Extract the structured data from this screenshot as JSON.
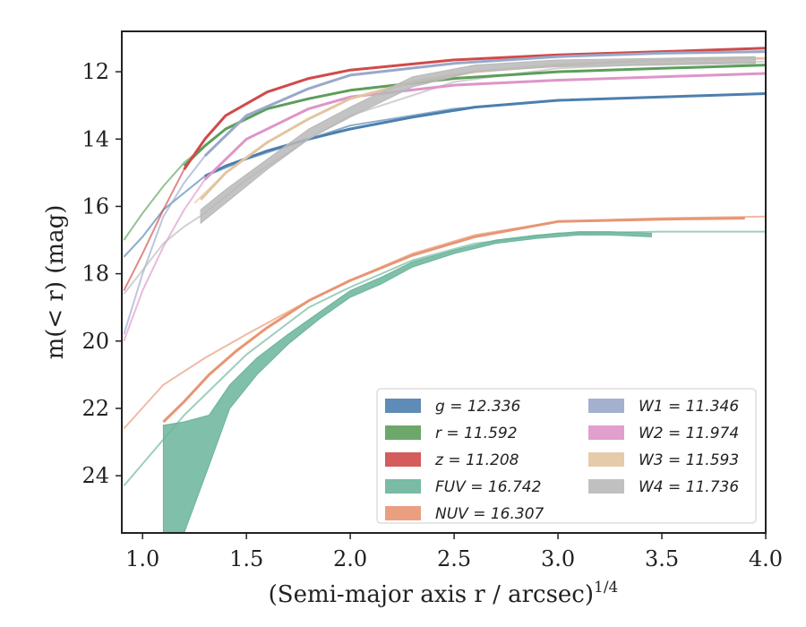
{
  "chart_data": {
    "type": "line",
    "xlabel": "(Semi-major axis r / arcsec)",
    "xlabel_exponent": "1/4",
    "ylabel": "m(< r) (mag)",
    "xlim": [
      0.9,
      4.0
    ],
    "ylim": [
      25.7,
      10.8
    ],
    "y_inverted": true,
    "x_ticks": [
      1.0,
      1.5,
      2.0,
      2.5,
      3.0,
      3.5,
      4.0
    ],
    "x_tick_labels": [
      "1.0",
      "1.5",
      "2.0",
      "2.5",
      "3.0",
      "3.5",
      "4.0"
    ],
    "y_ticks": [
      12,
      14,
      16,
      18,
      20,
      22,
      24
    ],
    "y_tick_labels": [
      "12",
      "14",
      "16",
      "18",
      "20",
      "22",
      "24"
    ],
    "grid": false,
    "legend_position": "lower-right",
    "series": [
      {
        "name": "g",
        "label_value": "12.336",
        "color": "#4c7fae",
        "fit_x": [
          0.91,
          1.0,
          1.1,
          1.2,
          1.3,
          1.5,
          1.8,
          2.0,
          2.5,
          3.0,
          3.5,
          4.0
        ],
        "fit_y": [
          17.5,
          16.9,
          16.1,
          15.6,
          15.1,
          14.6,
          14.0,
          13.6,
          13.1,
          12.85,
          12.75,
          12.65
        ],
        "data_x": [
          1.3,
          1.4,
          1.6,
          1.8,
          2.0,
          2.3,
          2.6,
          3.0,
          3.5,
          4.0
        ],
        "data_y": [
          15.1,
          14.8,
          14.35,
          14.0,
          13.7,
          13.35,
          13.05,
          12.85,
          12.75,
          12.65
        ]
      },
      {
        "name": "r",
        "label_value": "11.592",
        "color": "#5c9e5a",
        "fit_x": [
          0.91,
          1.0,
          1.1,
          1.2,
          1.3,
          1.4,
          1.6,
          1.8,
          2.0,
          2.5,
          3.0,
          3.5,
          4.0
        ],
        "fit_y": [
          17.0,
          16.2,
          15.4,
          14.7,
          14.2,
          13.7,
          13.1,
          12.8,
          12.55,
          12.2,
          12.0,
          11.9,
          11.8
        ],
        "data_x": [
          1.2,
          1.3,
          1.4,
          1.6,
          1.8,
          2.0,
          2.5,
          3.0,
          3.5,
          4.0
        ],
        "data_y": [
          14.8,
          14.2,
          13.7,
          13.1,
          12.8,
          12.55,
          12.2,
          12.0,
          11.9,
          11.8
        ]
      },
      {
        "name": "z",
        "label_value": "11.208",
        "color": "#d04a4a",
        "fit_x": [
          0.91,
          1.0,
          1.1,
          1.2,
          1.3,
          1.4,
          1.6,
          1.8,
          2.0,
          2.5,
          3.0,
          3.5,
          4.0
        ],
        "fit_y": [
          18.5,
          17.4,
          16.1,
          14.9,
          14.0,
          13.3,
          12.6,
          12.2,
          11.95,
          11.65,
          11.5,
          11.4,
          11.3
        ],
        "data_x": [
          1.2,
          1.3,
          1.4,
          1.6,
          1.8,
          2.0,
          2.5,
          3.0,
          3.5,
          4.0
        ],
        "data_y": [
          14.9,
          14.0,
          13.3,
          12.6,
          12.2,
          11.95,
          11.65,
          11.5,
          11.4,
          11.3
        ]
      },
      {
        "name": "FUV",
        "label_value": "16.742",
        "color": "#6ab49a",
        "fit_x": [
          0.91,
          1.2,
          1.5,
          1.8,
          2.0,
          2.3,
          2.6,
          3.0,
          3.5,
          4.0
        ],
        "fit_y": [
          24.3,
          22.2,
          20.4,
          19.0,
          18.4,
          17.6,
          17.1,
          16.8,
          16.75,
          16.75
        ],
        "band_x": [
          1.1,
          1.2,
          1.32,
          1.42,
          1.55,
          1.7,
          1.85,
          2.0,
          2.15,
          2.3,
          2.5,
          2.7,
          2.9,
          3.1,
          3.25,
          3.45
        ],
        "band_lo": [
          25.7,
          25.7,
          23.7,
          22.0,
          21.0,
          20.1,
          19.35,
          18.7,
          18.3,
          17.8,
          17.4,
          17.1,
          16.95,
          16.85,
          16.85,
          16.9
        ],
        "band_hi": [
          22.5,
          22.4,
          22.2,
          21.3,
          20.5,
          19.8,
          19.15,
          18.5,
          18.1,
          17.65,
          17.3,
          17.0,
          16.85,
          16.75,
          16.75,
          16.8
        ]
      },
      {
        "name": "NUV",
        "label_value": "16.307",
        "color": "#e89573",
        "fit_x": [
          0.91,
          1.1,
          1.3,
          1.5,
          1.8,
          2.0,
          2.3,
          2.6,
          3.0,
          3.5,
          4.0
        ],
        "fit_y": [
          22.6,
          21.3,
          20.5,
          19.8,
          18.8,
          18.2,
          17.4,
          16.85,
          16.45,
          16.35,
          16.3
        ],
        "data_x": [
          1.1,
          1.2,
          1.32,
          1.45,
          1.6,
          1.8,
          2.0,
          2.3,
          2.6,
          3.0,
          3.5,
          3.9
        ],
        "data_y": [
          22.4,
          21.8,
          21.0,
          20.3,
          19.6,
          18.8,
          18.2,
          17.45,
          16.9,
          16.45,
          16.38,
          16.35
        ]
      },
      {
        "name": "W1",
        "label_value": "11.346",
        "color": "#99a8c9",
        "fit_x": [
          0.91,
          1.0,
          1.1,
          1.2,
          1.3,
          1.5,
          1.8,
          2.0,
          2.5,
          3.0,
          3.5,
          4.0
        ],
        "fit_y": [
          19.8,
          18.0,
          16.3,
          15.3,
          14.5,
          13.3,
          12.5,
          12.1,
          11.75,
          11.55,
          11.45,
          11.4
        ],
        "data_x": [
          1.3,
          1.5,
          1.8,
          2.0,
          2.5,
          3.0,
          3.5,
          4.0
        ],
        "data_y": [
          14.5,
          13.3,
          12.5,
          12.1,
          11.75,
          11.55,
          11.45,
          11.4
        ]
      },
      {
        "name": "W2",
        "label_value": "11.974",
        "color": "#de95c8",
        "fit_x": [
          0.91,
          1.0,
          1.1,
          1.2,
          1.3,
          1.5,
          1.8,
          2.0,
          2.5,
          3.0,
          3.5,
          4.0
        ],
        "fit_y": [
          20.0,
          18.5,
          17.2,
          16.1,
          15.2,
          14.0,
          13.1,
          12.75,
          12.4,
          12.25,
          12.15,
          12.05
        ],
        "data_x": [
          1.3,
          1.5,
          1.8,
          2.0,
          2.5,
          3.0,
          3.5,
          4.0
        ],
        "data_y": [
          15.2,
          14.0,
          13.1,
          12.75,
          12.4,
          12.25,
          12.15,
          12.05
        ]
      },
      {
        "name": "W3",
        "label_value": "11.593",
        "color": "#e2c5a1",
        "fit_x": [
          1.25,
          1.4,
          1.6,
          1.8,
          2.0,
          2.3,
          2.6,
          3.0,
          3.5,
          4.0
        ],
        "fit_y": [
          15.9,
          15.0,
          14.1,
          13.4,
          12.8,
          12.3,
          12.0,
          11.8,
          11.65,
          11.6
        ],
        "data_x": [
          1.28,
          1.4,
          1.6,
          1.8,
          2.0,
          2.3,
          2.6,
          3.0,
          3.5,
          4.0
        ],
        "data_y": [
          15.8,
          15.0,
          14.1,
          13.4,
          12.8,
          12.3,
          12.0,
          11.8,
          11.65,
          11.6
        ]
      },
      {
        "name": "W4",
        "label_value": "11.736",
        "color": "#b9b9b9",
        "fit_x": [
          0.91,
          1.0,
          1.1,
          1.2,
          1.3,
          1.5,
          1.8,
          2.0,
          2.5,
          3.0,
          3.5,
          4.0
        ],
        "fit_y": [
          18.6,
          17.9,
          17.1,
          16.6,
          16.2,
          15.2,
          14.0,
          13.3,
          12.3,
          11.9,
          11.75,
          11.7
        ],
        "band_x": [
          1.28,
          1.4,
          1.6,
          1.8,
          2.0,
          2.3,
          2.6,
          3.0,
          3.5,
          3.95
        ],
        "band_lo": [
          16.5,
          15.9,
          14.9,
          14.0,
          13.35,
          12.45,
          12.0,
          11.85,
          11.8,
          11.75
        ],
        "band_hi": [
          16.1,
          15.5,
          14.6,
          13.7,
          13.05,
          12.15,
          11.8,
          11.65,
          11.6,
          11.55
        ]
      }
    ],
    "legend": [
      {
        "label": "g = 12.336"
      },
      {
        "label": "r = 11.592"
      },
      {
        "label": "z = 11.208"
      },
      {
        "label": "FUV = 16.742"
      },
      {
        "label": "NUV = 16.307"
      },
      {
        "label": "W1 = 11.346"
      },
      {
        "label": "W2 = 11.974"
      },
      {
        "label": "W3 = 11.593"
      },
      {
        "label": "W4 = 11.736"
      }
    ]
  }
}
